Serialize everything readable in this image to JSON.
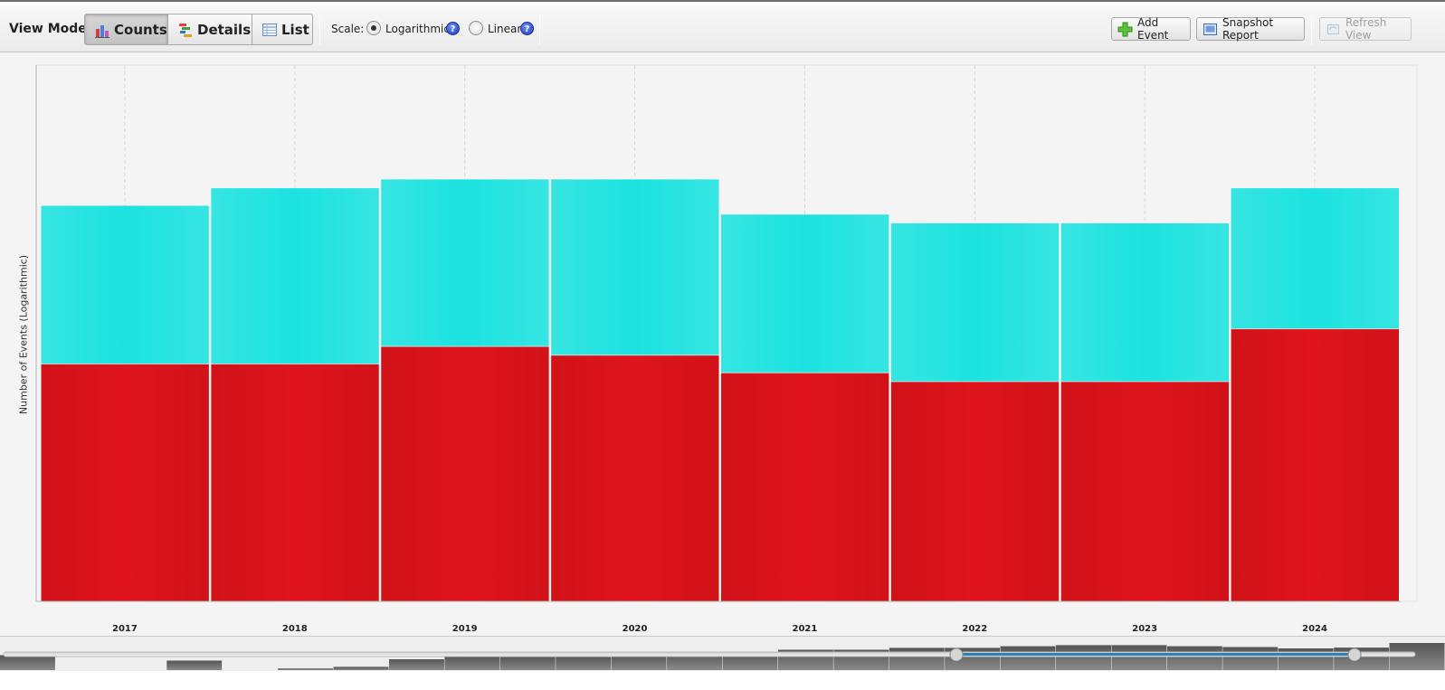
{
  "toolbar": {
    "view_mode_label": "View Mode:",
    "modes": [
      {
        "label": "Counts",
        "icon": "bar-chart-icon",
        "active": true
      },
      {
        "label": "Details",
        "icon": "details-icon",
        "active": false
      },
      {
        "label": "List",
        "icon": "table-icon",
        "active": false
      }
    ],
    "scale_label": "Scale:",
    "scale_options": [
      {
        "label": "Logarithmic",
        "selected": true,
        "help": "?"
      },
      {
        "label": "Linear",
        "selected": false,
        "help": "?"
      }
    ],
    "add_event_label": "Add Event",
    "snapshot_label": "Snapshot Report",
    "refresh_label": "Refresh View"
  },
  "colors": {
    "series_top": "#1ce3e0",
    "series_bottom": "#e0141c",
    "accent": "#2f7fb8"
  },
  "chart_data": {
    "type": "bar",
    "stacked": true,
    "scale": "logarithmic",
    "ylabel": "Number of Events (Logarithmic)",
    "xlabel": "",
    "categories": [
      "2017",
      "2018",
      "2019",
      "2020",
      "2021",
      "2022",
      "2023",
      "2024"
    ],
    "series": [
      {
        "values": [
          2.7,
          2.7,
          2.9,
          2.8,
          2.6,
          2.5,
          2.5,
          3.1
        ]
      },
      {
        "values": [
          1.8,
          2.0,
          1.9,
          2.0,
          1.8,
          1.8,
          1.8,
          1.6
        ]
      }
    ],
    "ylim": [
      0,
      6.1
    ],
    "grid": true
  },
  "navigator": {
    "histogram": [
      0.55,
      0.0,
      0.0,
      0.35,
      0.0,
      0.06,
      0.12,
      0.4,
      0.5,
      0.48,
      0.48,
      0.55,
      0.65,
      0.6,
      0.75,
      0.75,
      0.82,
      0.82,
      0.88,
      0.92,
      0.92,
      0.88,
      0.85,
      0.8,
      0.83,
      1.0
    ]
  }
}
